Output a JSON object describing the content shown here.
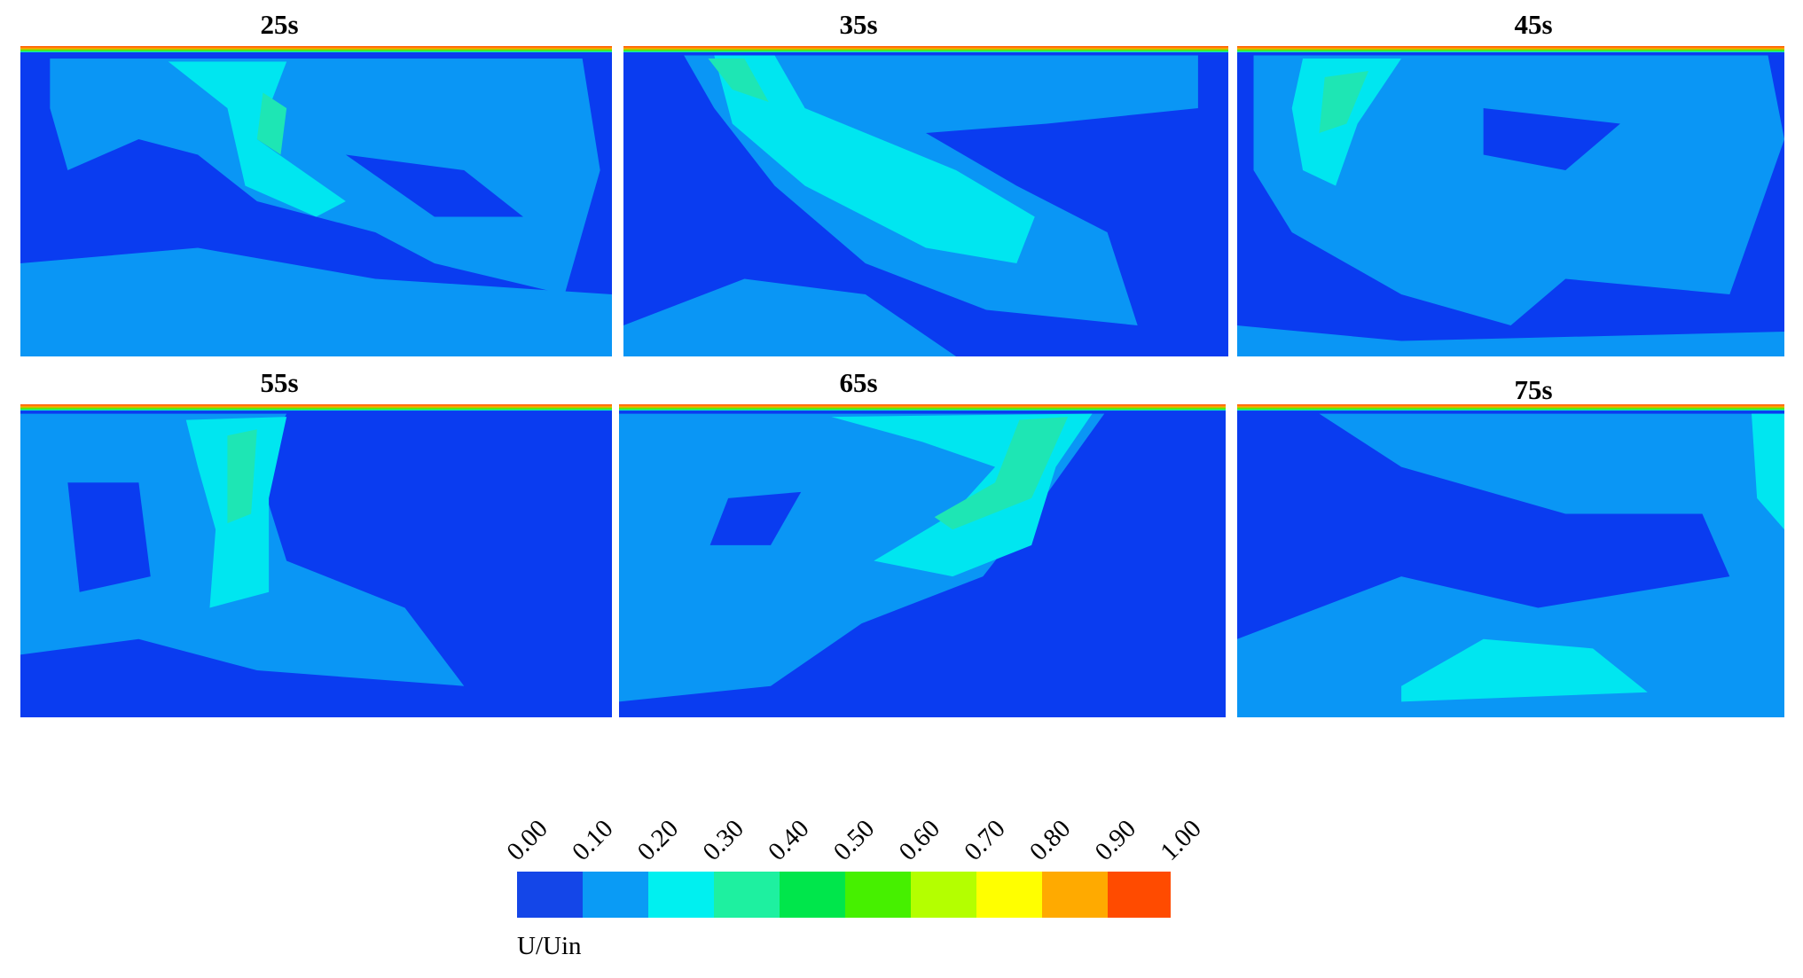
{
  "panels": [
    {
      "title": "25s"
    },
    {
      "title": "35s"
    },
    {
      "title": "45s"
    },
    {
      "title": "55s"
    },
    {
      "title": "65s"
    },
    {
      "title": "75s"
    }
  ],
  "colorbar": {
    "title": "U/Uin",
    "labels": [
      "0.00",
      "0.10",
      "0.20",
      "0.30",
      "0.40",
      "0.50",
      "0.60",
      "0.70",
      "0.80",
      "0.90",
      "1.00"
    ]
  }
}
